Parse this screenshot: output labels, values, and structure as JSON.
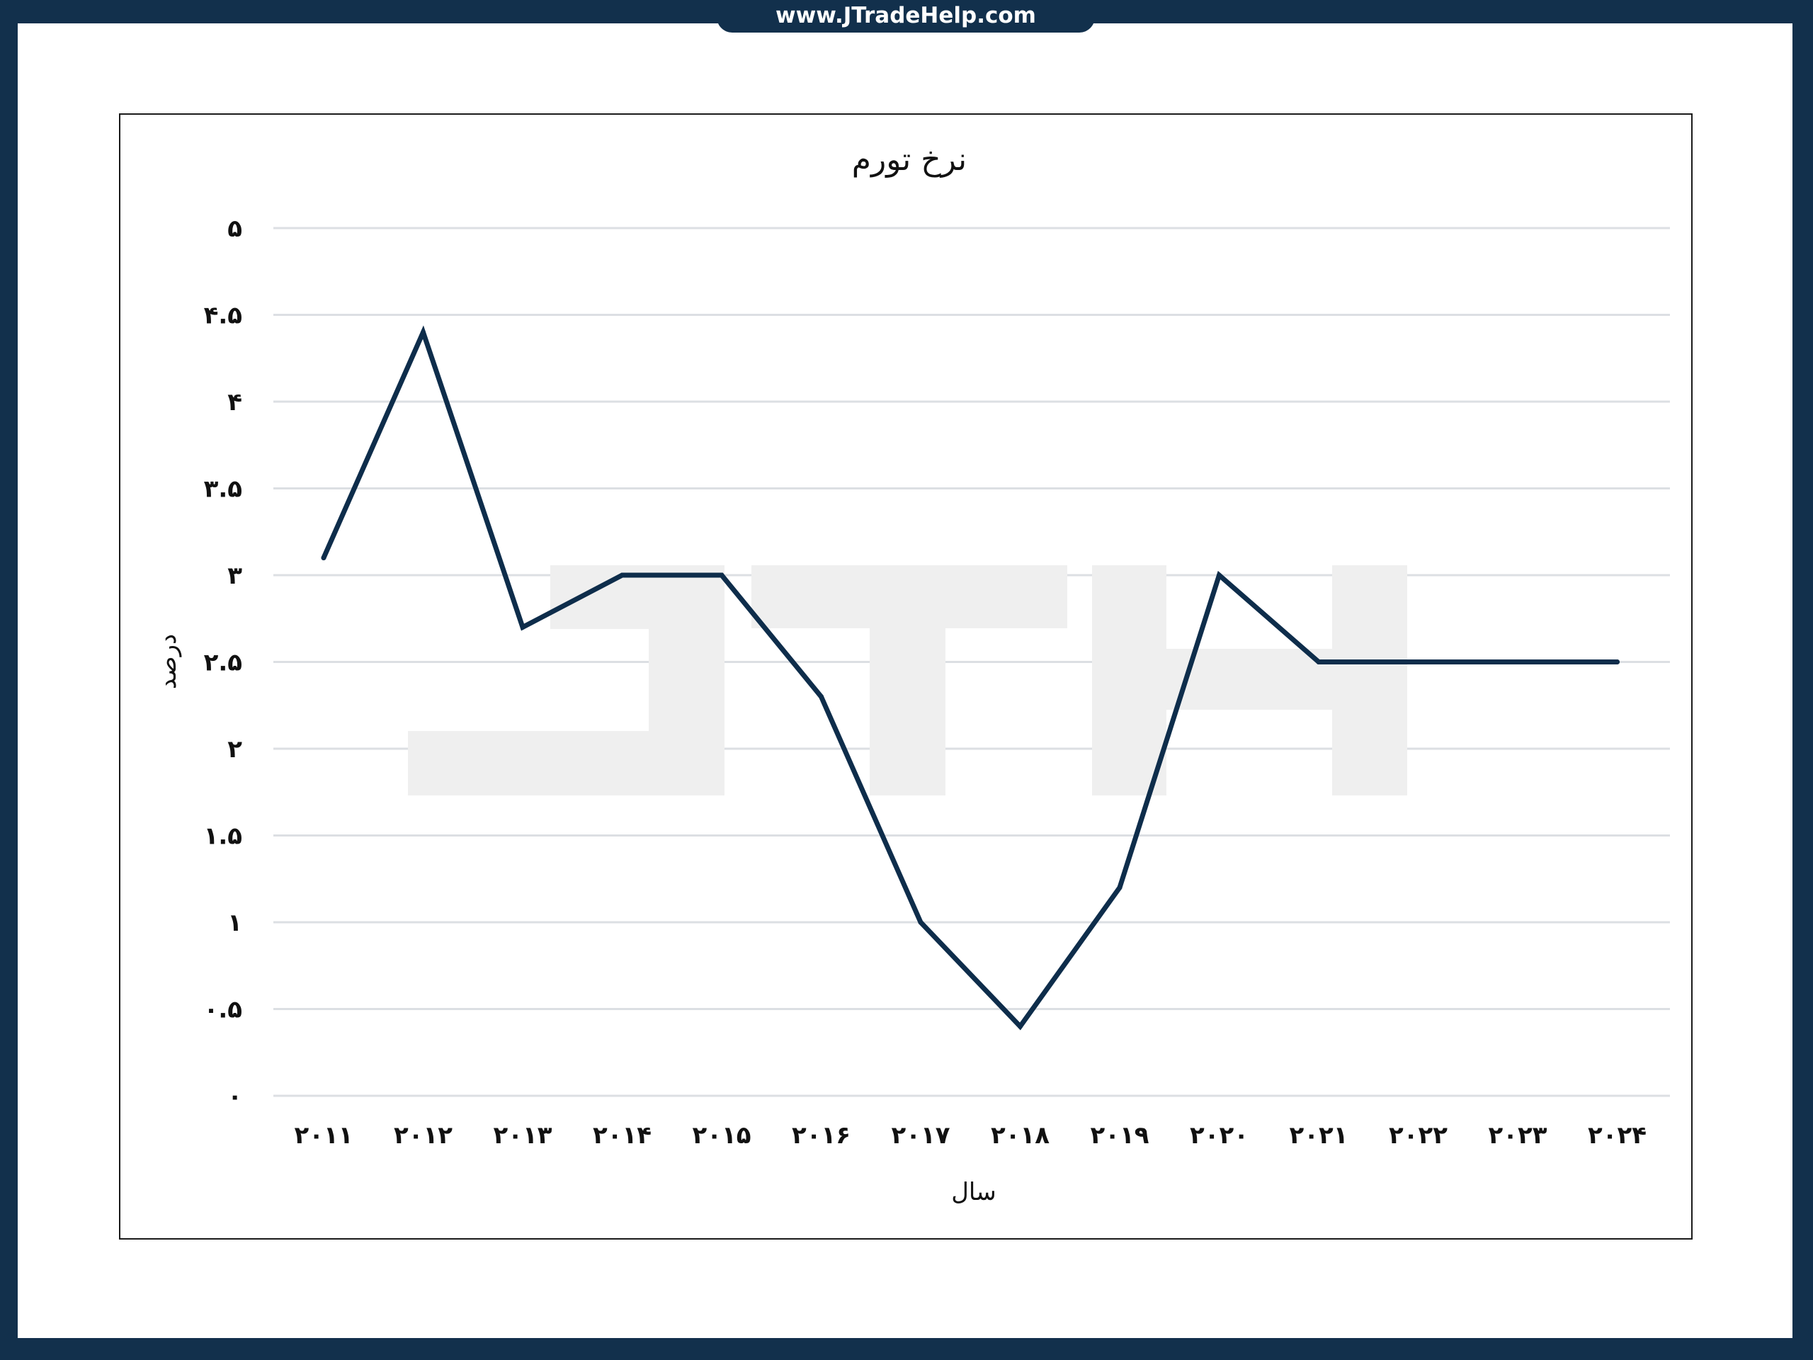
{
  "site": {
    "url": "www.JTradeHelp.com"
  },
  "watermark": {
    "text": "JTH",
    "color": "#efefef"
  },
  "colors": {
    "line": "#0e2d4b",
    "grid": "#dcdfe3",
    "frame": "#12304c"
  },
  "chart_data": {
    "type": "line",
    "title": "نرخ تورم",
    "xlabel": "سال",
    "ylabel": "درصد",
    "categories": [
      "2011",
      "2012",
      "2013",
      "2014",
      "2015",
      "2016",
      "2017",
      "2018",
      "2019",
      "2020",
      "2021",
      "2022",
      "2023",
      "2024"
    ],
    "category_labels": [
      "۲۰۱۱",
      "۲۰۱۲",
      "۲۰۱۳",
      "۲۰۱۴",
      "۲۰۱۵",
      "۲۰۱۶",
      "۲۰۱۷",
      "۲۰۱۸",
      "۲۰۱۹",
      "۲۰۲۰",
      "۲۰۲۱",
      "۲۰۲۲",
      "۲۰۲۳",
      "۲۰۲۴"
    ],
    "values": [
      3.1,
      4.4,
      2.7,
      3.0,
      3.0,
      2.3,
      1.0,
      0.4,
      1.2,
      3.0,
      2.5,
      2.5,
      2.5,
      2.5
    ],
    "ylim": [
      0,
      5
    ],
    "yticks": [
      0,
      0.5,
      1,
      1.5,
      2,
      2.5,
      3,
      3.5,
      4,
      4.5,
      5
    ],
    "ytick_labels": [
      "۰",
      "۰.۵",
      "۱",
      "۱.۵",
      "۲",
      "۲.۵",
      "۳",
      "۳.۵",
      "۴",
      "۴.۵",
      "۵"
    ],
    "grid": true,
    "legend": "none"
  }
}
